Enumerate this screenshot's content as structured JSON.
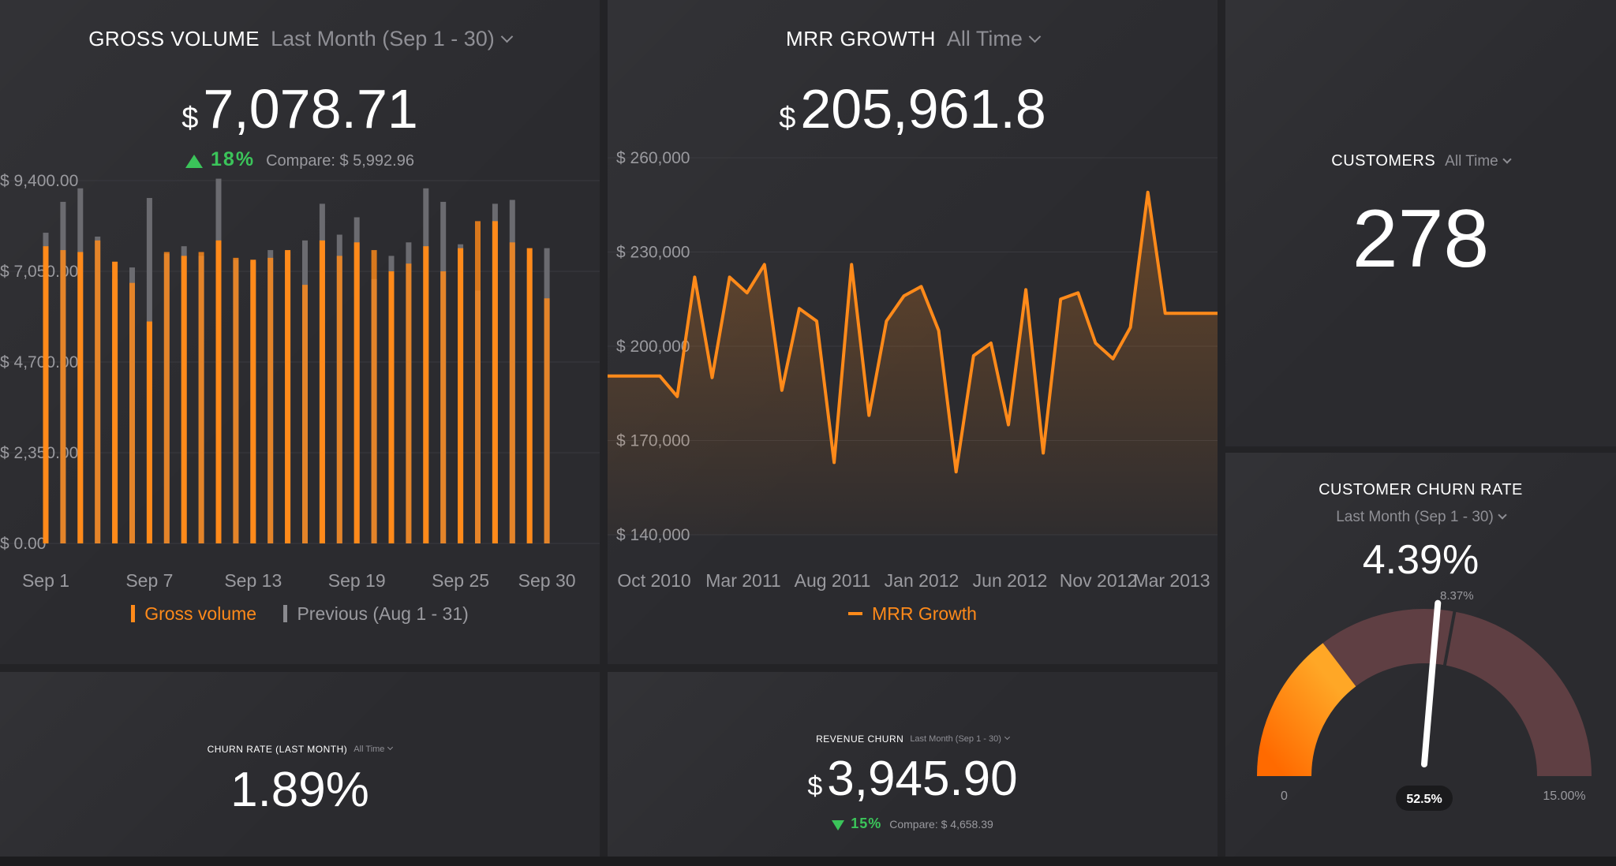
{
  "colors": {
    "accent": "#ff8a1a",
    "previous": "#6b6b70",
    "positive": "#3bc45a",
    "gauge_track": "#5f3f43"
  },
  "gross_volume": {
    "title": "GROSS VOLUME",
    "range": "Last Month (Sep 1 - 30)",
    "currency": "$",
    "value": "7,078.71",
    "change_pct": "18%",
    "compare_label": "Compare:",
    "compare_value": "$ 5,992.96",
    "legend_current": "Gross volume",
    "legend_previous": "Previous (Aug 1 - 31)"
  },
  "mrr_growth": {
    "title": "MRR GROWTH",
    "range": "All Time",
    "currency": "$",
    "value": "205,961.8",
    "legend": "MRR Growth"
  },
  "customers": {
    "title": "CUSTOMERS",
    "range": "All Time",
    "value": "278"
  },
  "customer_churn_rate": {
    "title": "CUSTOMER CHURN RATE",
    "range": "Last Month (Sep 1 - 30)",
    "value": "4.39%",
    "gauge_min_label": "0",
    "gauge_max_label": "15.00%",
    "gauge_target_label": "8.37%",
    "gauge_badge": "52.5%",
    "gauge_min": 0,
    "gauge_max": 15,
    "gauge_target": 8.37,
    "gauge_value": 4.39,
    "gauge_needle": 7.875
  },
  "churn_rate": {
    "title": "CHURN RATE (LAST MONTH)",
    "range": "All Time",
    "value": "1.89%"
  },
  "revenue_churn": {
    "title": "REVENUE CHURN",
    "range": "Last Month (Sep 1 - 30)",
    "currency": "$",
    "value": "3,945.90",
    "change_pct": "15%",
    "compare_label": "Compare:",
    "compare_value": "$ 4,658.39"
  },
  "chart_data": [
    {
      "type": "bar",
      "name": "gross-volume",
      "x": [
        1,
        2,
        3,
        4,
        5,
        6,
        7,
        8,
        9,
        10,
        11,
        12,
        13,
        14,
        15,
        16,
        17,
        18,
        19,
        20,
        21,
        22,
        23,
        24,
        25,
        26,
        27,
        28,
        29,
        30
      ],
      "series": [
        {
          "name": "Gross volume",
          "values": [
            7700,
            7600,
            7550,
            7850,
            7300,
            6750,
            5750,
            7550,
            7450,
            7550,
            7850,
            7400,
            7350,
            7400,
            7600,
            6700,
            7850,
            7450,
            7800,
            7600,
            7050,
            7250,
            7700,
            7050,
            7650,
            8350,
            8350,
            7800,
            7650,
            6350
          ]
        },
        {
          "name": "Previous (Aug 1 - 31)",
          "values": [
            8050,
            8850,
            9200,
            7950,
            6850,
            7150,
            8950,
            7500,
            7700,
            7450,
            9450,
            7350,
            7300,
            7600,
            7550,
            7850,
            8800,
            8000,
            8450,
            6850,
            7450,
            7800,
            9200,
            8850,
            7750,
            6550,
            8800,
            8900,
            7350,
            7650
          ]
        }
      ],
      "x_tick_labels": [
        "Sep 1",
        "Sep 7",
        "Sep 13",
        "Sep 19",
        "Sep 25",
        "Sep 30"
      ],
      "y_tick_labels": [
        "$ 0.00",
        "$ 2,350.00",
        "$ 4,700.00",
        "$ 7,050.00",
        "$ 9,400.00"
      ],
      "ylim": [
        0,
        9400
      ],
      "grid": true
    },
    {
      "type": "area",
      "name": "mrr-growth",
      "series": [
        {
          "name": "MRR Growth",
          "values": [
            190500,
            190500,
            190500,
            190500,
            184000,
            222000,
            190000,
            222000,
            217000,
            226000,
            186000,
            212000,
            208000,
            163000,
            226000,
            178000,
            208000,
            216000,
            219000,
            205000,
            160000,
            197000,
            201000,
            175000,
            218000,
            166000,
            215000,
            217000,
            201000,
            196000,
            206000,
            249000,
            210500,
            210500,
            210500,
            210500
          ]
        }
      ],
      "x_tick_labels": [
        "Oct 2010",
        "Mar 2011",
        "Aug 2011",
        "Jan 2012",
        "Jun 2012",
        "Nov 2012",
        "Mar 2013"
      ],
      "y_tick_labels": [
        "$ 140,000",
        "$ 170,000",
        "$ 200,000",
        "$ 230,000",
        "$ 260,000"
      ],
      "ylim": [
        140000,
        260000
      ],
      "grid": true
    }
  ]
}
